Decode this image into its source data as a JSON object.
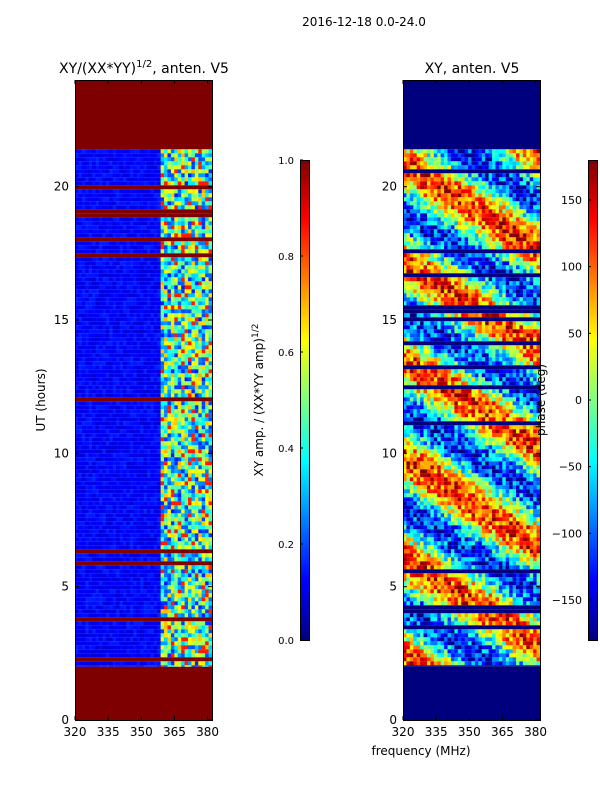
{
  "suptitle": "2016-12-18 0.0-24.0",
  "xlabel_shared": "frequency (MHz)",
  "colormap": [
    "#00007f",
    "#0000ff",
    "#007fff",
    "#00ffff",
    "#7fff7f",
    "#ffff00",
    "#ff7f00",
    "#ff0000",
    "#7f0000"
  ],
  "chart_data": [
    {
      "type": "heatmap",
      "title_main": "XY/(XX*YY)",
      "title_sup": "1/2",
      "title_tail": ", anten. V5",
      "ylabel": "UT (hours)",
      "xlim": [
        320,
        382
      ],
      "ylim": [
        0,
        24
      ],
      "xticks": [
        320,
        335,
        350,
        365,
        380
      ],
      "yticks": [
        0,
        5,
        10,
        15,
        20
      ],
      "data_coverage_hours": [
        2.0,
        21.4
      ],
      "flagged_value": 1.0,
      "typical_value": 0.1,
      "colorbar": {
        "label_main": "XY amp. / (XX*YY amp)",
        "label_sup": "1/2",
        "range": [
          0.0,
          1.0
        ],
        "ticks": [
          "0.0",
          "0.2",
          "0.4",
          "0.6",
          "0.8",
          "1.0"
        ]
      }
    },
    {
      "type": "heatmap",
      "title": "XY, anten. V5",
      "xlim": [
        320,
        382
      ],
      "ylim": [
        0,
        24
      ],
      "xticks": [
        320,
        335,
        350,
        365,
        380
      ],
      "yticks": [
        0,
        5,
        10,
        15,
        20
      ],
      "data_coverage_hours": [
        2.0,
        21.4
      ],
      "colorbar": {
        "label": "phase (deg)",
        "range": [
          -180,
          180
        ],
        "ticks": [
          "−150",
          "−100",
          "−50",
          "0",
          "50",
          "100",
          "150"
        ]
      }
    }
  ]
}
